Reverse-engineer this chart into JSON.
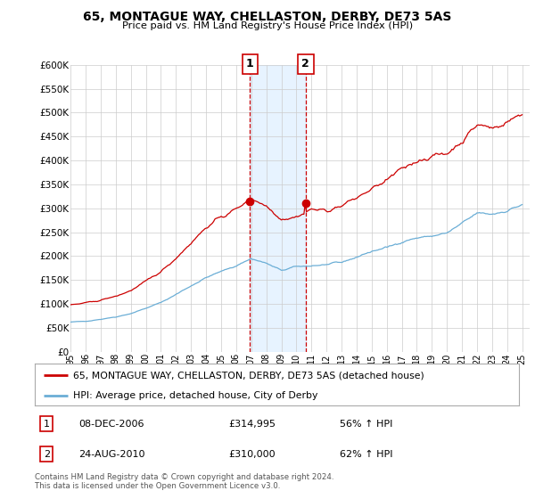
{
  "title": "65, MONTAGUE WAY, CHELLASTON, DERBY, DE73 5AS",
  "subtitle": "Price paid vs. HM Land Registry's House Price Index (HPI)",
  "ylabel_ticks": [
    "£0",
    "£50K",
    "£100K",
    "£150K",
    "£200K",
    "£250K",
    "£300K",
    "£350K",
    "£400K",
    "£450K",
    "£500K",
    "£550K",
    "£600K"
  ],
  "ytick_values": [
    0,
    50000,
    100000,
    150000,
    200000,
    250000,
    300000,
    350000,
    400000,
    450000,
    500000,
    550000,
    600000
  ],
  "hpi_color": "#6baed6",
  "price_color": "#cc0000",
  "sale1_date_x": 2006.92,
  "sale1_price": 314995,
  "sale2_date_x": 2010.62,
  "sale2_price": 310000,
  "sale1_label": "1",
  "sale2_label": "2",
  "sale_shade_x1": 2006.92,
  "sale_shade_x2": 2010.62,
  "legend_price_label": "65, MONTAGUE WAY, CHELLASTON, DERBY, DE73 5AS (detached house)",
  "legend_hpi_label": "HPI: Average price, detached house, City of Derby",
  "table_row1": [
    "1",
    "08-DEC-2006",
    "£314,995",
    "56% ↑ HPI"
  ],
  "table_row2": [
    "2",
    "24-AUG-2010",
    "£310,000",
    "62% ↑ HPI"
  ],
  "footnote": "Contains HM Land Registry data © Crown copyright and database right 2024.\nThis data is licensed under the Open Government Licence v3.0.",
  "background_color": "#ffffff",
  "grid_color": "#cccccc",
  "xmin": 1995.0,
  "xmax": 2025.5,
  "ylim_max": 600000
}
